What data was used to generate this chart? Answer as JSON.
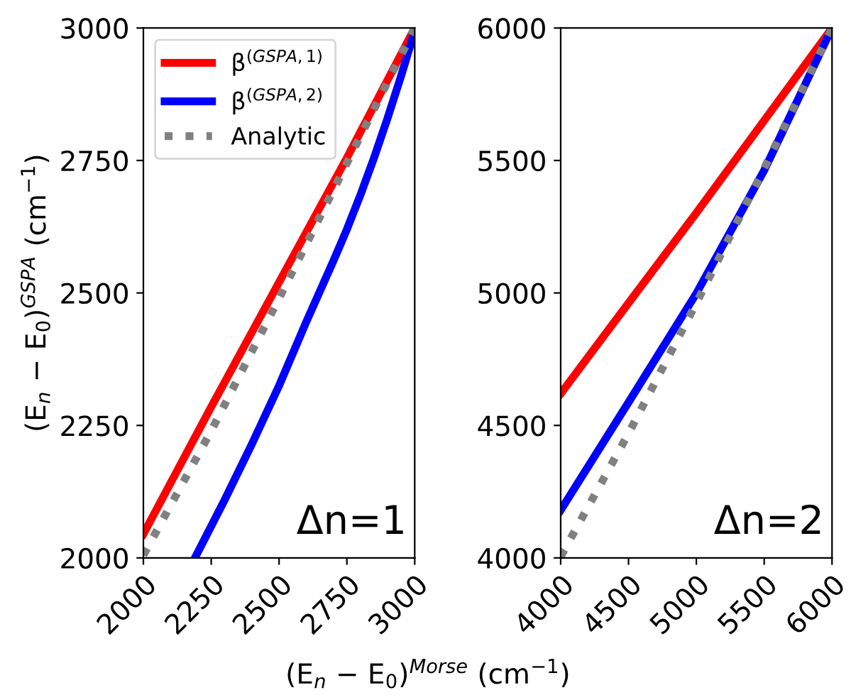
{
  "chart_data": [
    {
      "type": "line",
      "ylabel": "(E$_{n}$ − E$_{0}$)$^{GSPA}$ (cm$^{−1}$)",
      "xlabel": "(E$_{n}$ − E$_{0}$)$^{Morse}$ (cm$^{−1}$)",
      "annotations": [
        "Δn=1"
      ],
      "xlim": [
        2000,
        3000
      ],
      "xticks": [
        2000,
        2250,
        2500,
        2750,
        3000
      ],
      "ylim": [
        2000,
        3000
      ],
      "yticks": [
        2000,
        2250,
        2500,
        2750,
        3000
      ],
      "legend": "top left",
      "grid": false,
      "series": [
        {
          "name": "β$^{(GSPA,1)}$",
          "color": "#ff0000",
          "line_style": "solid",
          "x": [
            2000,
            2250,
            2500,
            2750,
            3000
          ],
          "values": [
            2045,
            2285,
            2520,
            2755,
            3000
          ]
        },
        {
          "name": "β$^{(GSPA,2)}$",
          "color": "#0000ff",
          "line_style": "solid",
          "x": [
            2190,
            2300,
            2400,
            2500,
            2600,
            2700,
            2750,
            2800,
            2850,
            2900,
            2950,
            3000
          ],
          "values": [
            2000,
            2110,
            2215,
            2325,
            2445,
            2560,
            2620,
            2685,
            2755,
            2830,
            2910,
            2995
          ]
        },
        {
          "name": "Analytic",
          "color": "#808080",
          "line_style": "dotted",
          "x": [
            2000,
            2250,
            2500,
            2750,
            3000
          ],
          "values": [
            2005,
            2240,
            2490,
            2745,
            3000
          ]
        }
      ]
    },
    {
      "type": "line",
      "annotations": [
        "Δn=2"
      ],
      "xlim": [
        4000,
        6000
      ],
      "xticks": [
        4000,
        4500,
        5000,
        5500,
        6000
      ],
      "ylim": [
        4000,
        6000
      ],
      "yticks": [
        4000,
        4500,
        5000,
        5500,
        6000
      ],
      "grid": false,
      "series": [
        {
          "color": "#ff0000",
          "line_style": "solid",
          "x": [
            4000,
            4500,
            5000,
            5500,
            6000
          ],
          "values": [
            4620,
            4962,
            5302,
            5651,
            6000
          ]
        },
        {
          "color": "#0000ff",
          "line_style": "solid",
          "x": [
            4000,
            4500,
            5000,
            5500,
            6000
          ],
          "values": [
            4180,
            4587,
            4998,
            5463,
            6000
          ]
        },
        {
          "color": "#808080",
          "line_style": "dotted",
          "x": [
            4000,
            4500,
            5000,
            5500,
            6000
          ],
          "values": [
            4005,
            4470,
            4962,
            5470,
            6000
          ]
        }
      ]
    }
  ]
}
